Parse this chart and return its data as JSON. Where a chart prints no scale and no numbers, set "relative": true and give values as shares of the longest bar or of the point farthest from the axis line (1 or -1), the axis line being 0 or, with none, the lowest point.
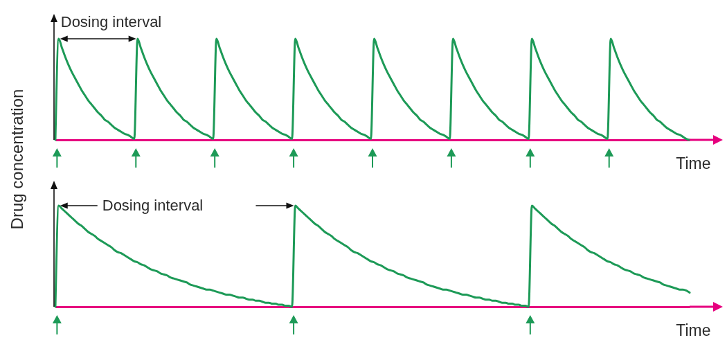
{
  "chart_data": [
    {
      "type": "line",
      "relative": true,
      "ylabel": "Drug concentration",
      "xlabel": "Time",
      "annotations": [
        "Dosing interval"
      ],
      "color": "#1d9a57",
      "categories": [
        null,
        null,
        null,
        null,
        null,
        null,
        null,
        null,
        null,
        null,
        null,
        null,
        null,
        null,
        null,
        null,
        null,
        null,
        null,
        null,
        null,
        null,
        null,
        null,
        null,
        null,
        null,
        null,
        null,
        null,
        null,
        null,
        null,
        null,
        null,
        null,
        null,
        null,
        null,
        null,
        null,
        null,
        null,
        null,
        null,
        null,
        null,
        null,
        null,
        null,
        null,
        null,
        null,
        null,
        null,
        null,
        null,
        null,
        null,
        null,
        null,
        null,
        null,
        null,
        null,
        null,
        null,
        null,
        null,
        null,
        null,
        null,
        null,
        null,
        null,
        null,
        null,
        null,
        null,
        null,
        null,
        null,
        null,
        null,
        null,
        null,
        null,
        null,
        null,
        null,
        null,
        null,
        null,
        null,
        null,
        null,
        null,
        null,
        null,
        null,
        null,
        null,
        null,
        null,
        null,
        null,
        null,
        null,
        null,
        null,
        null,
        null,
        null,
        null,
        null,
        null,
        null,
        null,
        null,
        null,
        null,
        null,
        null,
        null,
        null,
        null,
        null,
        null,
        null,
        null,
        null,
        null,
        null,
        null,
        null,
        null,
        null,
        null,
        null,
        null,
        null,
        null,
        null,
        null,
        null,
        null,
        null,
        null,
        null,
        null,
        null,
        null,
        null,
        null,
        null,
        null,
        null,
        null,
        null,
        null,
        null,
        null,
        null,
        null,
        null,
        null,
        null,
        null,
        null,
        null,
        null,
        null,
        null,
        null,
        null,
        null,
        null,
        null,
        null,
        null,
        null,
        null,
        null,
        null,
        null,
        null,
        null,
        null,
        null,
        null,
        null,
        null,
        null,
        null
      ],
      "values": [
        0,
        1,
        0.91,
        0.82,
        0.74,
        0.67,
        0.61,
        0.55,
        0.49,
        0.44,
        0.39,
        0.35,
        0.31,
        0.27,
        0.24,
        0.2,
        0.18,
        0.15,
        0.12,
        0.1,
        0.08,
        0.06,
        0.05,
        0.03,
        0.01,
        1,
        0.91,
        0.82,
        0.74,
        0.67,
        0.61,
        0.55,
        0.49,
        0.44,
        0.39,
        0.35,
        0.31,
        0.27,
        0.24,
        0.2,
        0.18,
        0.15,
        0.12,
        0.1,
        0.08,
        0.06,
        0.05,
        0.03,
        0.01,
        1,
        0.91,
        0.82,
        0.74,
        0.67,
        0.61,
        0.55,
        0.49,
        0.44,
        0.39,
        0.35,
        0.31,
        0.27,
        0.24,
        0.2,
        0.18,
        0.15,
        0.12,
        0.1,
        0.08,
        0.06,
        0.05,
        0.03,
        0.01,
        1,
        0.91,
        0.82,
        0.74,
        0.67,
        0.61,
        0.55,
        0.49,
        0.44,
        0.39,
        0.35,
        0.31,
        0.27,
        0.24,
        0.2,
        0.18,
        0.15,
        0.12,
        0.1,
        0.08,
        0.06,
        0.05,
        0.03,
        0.01,
        1,
        0.91,
        0.82,
        0.74,
        0.67,
        0.61,
        0.55,
        0.49,
        0.44,
        0.39,
        0.35,
        0.31,
        0.27,
        0.24,
        0.2,
        0.18,
        0.15,
        0.12,
        0.1,
        0.08,
        0.06,
        0.05,
        0.03,
        0.01,
        1,
        0.91,
        0.82,
        0.74,
        0.67,
        0.61,
        0.55,
        0.49,
        0.44,
        0.39,
        0.35,
        0.31,
        0.27,
        0.24,
        0.2,
        0.18,
        0.15,
        0.12,
        0.1,
        0.08,
        0.06,
        0.05,
        0.03,
        0.01,
        1,
        0.91,
        0.82,
        0.74,
        0.67,
        0.61,
        0.55,
        0.49,
        0.44,
        0.39,
        0.35,
        0.31,
        0.27,
        0.24,
        0.2,
        0.18,
        0.15,
        0.12,
        0.1,
        0.08,
        0.06,
        0.05,
        0.03,
        0.01,
        1,
        0.91,
        0.82,
        0.74,
        0.67,
        0.61,
        0.55,
        0.49,
        0.44,
        0.39,
        0.35,
        0.31,
        0.27,
        0.24,
        0.2,
        0.18,
        0.15,
        0.12,
        0.1,
        0.08,
        0.06,
        0.05,
        0.03,
        0.01,
        0
      ]
    },
    {
      "type": "line",
      "relative": true,
      "xlabel": "Time",
      "annotations": [
        "Dosing interval"
      ],
      "color": "#1d9a57",
      "categories": [
        null,
        null,
        null,
        null,
        null,
        null,
        null,
        null,
        null,
        null,
        null,
        null,
        null,
        null,
        null,
        null,
        null,
        null,
        null,
        null,
        null,
        null,
        null,
        null,
        null,
        null,
        null,
        null,
        null,
        null,
        null,
        null,
        null,
        null,
        null,
        null,
        null,
        null,
        null,
        null,
        null,
        null,
        null,
        null,
        null,
        null,
        null,
        null,
        null,
        null,
        null,
        null,
        null,
        null,
        null,
        null,
        null,
        null,
        null,
        null,
        null,
        null,
        null,
        null,
        null,
        null,
        null,
        null,
        null,
        null,
        null,
        null,
        null,
        null,
        null,
        null,
        null,
        null,
        null,
        null,
        null,
        null,
        null,
        null,
        null,
        null,
        null,
        null,
        null,
        null,
        null,
        null,
        null,
        null,
        null,
        null,
        null,
        null,
        null,
        null,
        null,
        null,
        null,
        null,
        null,
        null,
        null,
        null,
        null,
        null,
        null,
        null,
        null,
        null,
        null,
        null,
        null,
        null,
        null,
        null,
        null,
        null,
        null,
        null,
        null,
        null,
        null,
        null,
        null,
        null,
        null,
        null,
        null,
        null,
        null,
        null,
        null,
        null,
        null,
        null,
        null,
        null,
        null,
        null,
        null,
        null,
        null,
        null,
        null,
        null,
        null,
        null,
        null,
        null,
        null,
        null,
        null,
        null,
        null,
        null,
        null,
        null,
        null,
        null,
        null,
        null,
        null,
        null,
        null,
        null,
        null,
        null,
        null,
        null,
        null,
        null,
        null,
        null,
        null,
        null,
        null,
        null,
        null,
        null,
        null,
        null,
        null,
        null,
        null,
        null,
        null,
        null,
        null,
        null
      ],
      "values": [
        0,
        1,
        0.97,
        0.94,
        0.91,
        0.88,
        0.85,
        0.82,
        0.8,
        0.77,
        0.74,
        0.72,
        0.7,
        0.67,
        0.65,
        0.63,
        0.61,
        0.59,
        0.56,
        0.54,
        0.53,
        0.51,
        0.49,
        0.47,
        0.45,
        0.44,
        0.42,
        0.41,
        0.39,
        0.37,
        0.36,
        0.35,
        0.33,
        0.32,
        0.31,
        0.29,
        0.28,
        0.27,
        0.26,
        0.25,
        0.24,
        0.22,
        0.21,
        0.2,
        0.19,
        0.18,
        0.17,
        0.17,
        0.16,
        0.15,
        0.14,
        0.13,
        0.12,
        0.12,
        0.11,
        0.1,
        0.09,
        0.09,
        0.08,
        0.07,
        0.07,
        0.06,
        0.06,
        0.05,
        0.04,
        0.04,
        0.03,
        0.03,
        0.02,
        0.02,
        0.01,
        0.01,
        0,
        1,
        0.97,
        0.94,
        0.91,
        0.88,
        0.85,
        0.82,
        0.8,
        0.77,
        0.74,
        0.72,
        0.7,
        0.67,
        0.65,
        0.63,
        0.61,
        0.59,
        0.56,
        0.54,
        0.53,
        0.51,
        0.49,
        0.47,
        0.45,
        0.44,
        0.42,
        0.41,
        0.39,
        0.37,
        0.36,
        0.35,
        0.33,
        0.32,
        0.31,
        0.29,
        0.28,
        0.27,
        0.26,
        0.25,
        0.24,
        0.22,
        0.21,
        0.2,
        0.19,
        0.18,
        0.17,
        0.17,
        0.16,
        0.15,
        0.14,
        0.13,
        0.12,
        0.12,
        0.11,
        0.1,
        0.09,
        0.09,
        0.08,
        0.07,
        0.07,
        0.06,
        0.06,
        0.05,
        0.04,
        0.04,
        0.03,
        0.03,
        0.02,
        0.02,
        0.01,
        0.01,
        0,
        1,
        0.97,
        0.94,
        0.91,
        0.88,
        0.85,
        0.82,
        0.8,
        0.77,
        0.74,
        0.72,
        0.7,
        0.67,
        0.65,
        0.63,
        0.61,
        0.59,
        0.56,
        0.54,
        0.53,
        0.51,
        0.49,
        0.47,
        0.45,
        0.44,
        0.42,
        0.41,
        0.39,
        0.37,
        0.36,
        0.35,
        0.33,
        0.32,
        0.31,
        0.29,
        0.28,
        0.27,
        0.26,
        0.25,
        0.24,
        0.22,
        0.21,
        0.2,
        0.19,
        0.18,
        0.17,
        0.17,
        0.16,
        0.14
      ]
    }
  ]
}
